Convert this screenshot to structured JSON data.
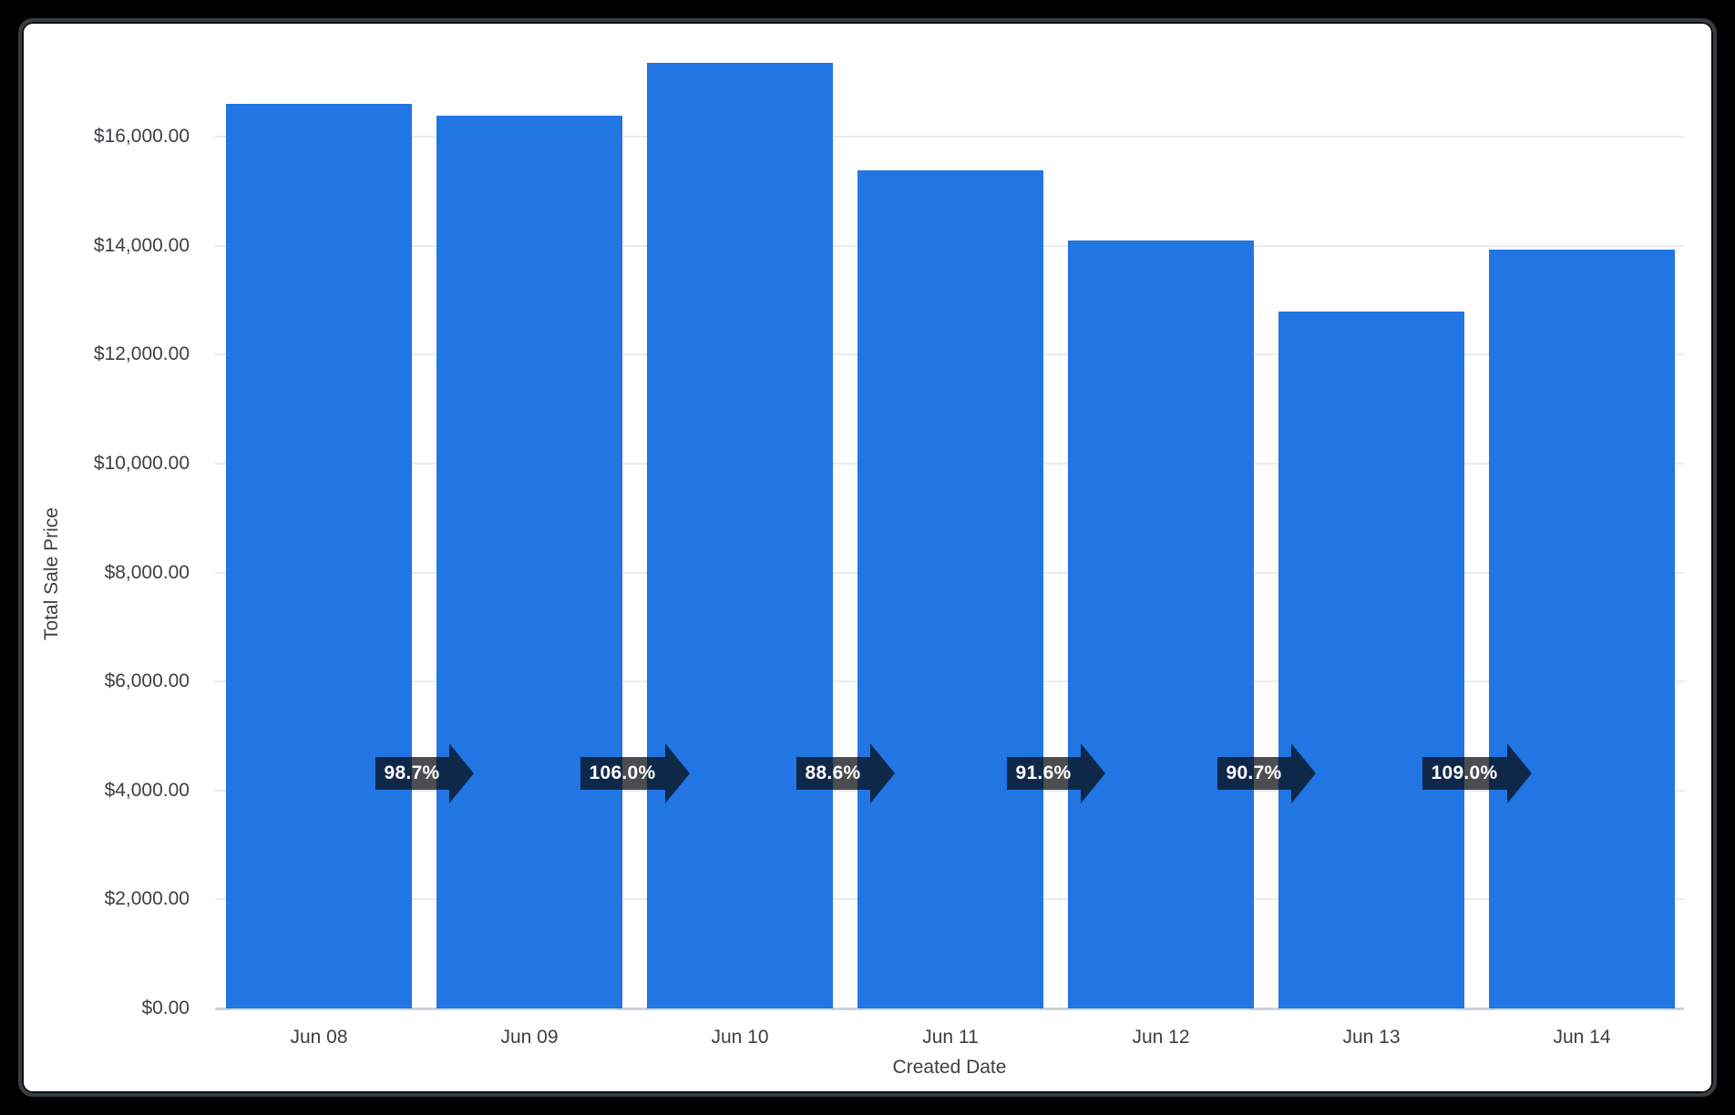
{
  "frame": {
    "page_background": "#000000",
    "card_background": "#ffffff",
    "card_border_color": "#363d41"
  },
  "chart_data": {
    "type": "bar",
    "title": "",
    "xlabel": "Created Date",
    "ylabel": "Total Sale Price",
    "categories": [
      "Jun 08",
      "Jun 09",
      "Jun 10",
      "Jun 11",
      "Jun 12",
      "Jun 13",
      "Jun 14"
    ],
    "values": [
      16600,
      16385,
      17365,
      15385,
      14095,
      12785,
      13935
    ],
    "bar_color": "#2176e4",
    "grid": true,
    "legend": false,
    "ylim": [
      0,
      16000
    ],
    "yticks": [
      {
        "value": 0,
        "label": "$0.00"
      },
      {
        "value": 2000,
        "label": "$2,000.00"
      },
      {
        "value": 4000,
        "label": "$4,000.00"
      },
      {
        "value": 6000,
        "label": "$6,000.00"
      },
      {
        "value": 8000,
        "label": "$8,000.00"
      },
      {
        "value": 10000,
        "label": "$10,000.00"
      },
      {
        "value": 12000,
        "label": "$12,000.00"
      },
      {
        "value": 14000,
        "label": "$14,000.00"
      },
      {
        "value": 16000,
        "label": "$16,000.00"
      }
    ],
    "growth_arrows": [
      {
        "from": "Jun 08",
        "to": "Jun 09",
        "label": "98.7%"
      },
      {
        "from": "Jun 09",
        "to": "Jun 10",
        "label": "106.0%"
      },
      {
        "from": "Jun 10",
        "to": "Jun 11",
        "label": "88.6%"
      },
      {
        "from": "Jun 11",
        "to": "Jun 12",
        "label": "91.6%"
      },
      {
        "from": "Jun 12",
        "to": "Jun 13",
        "label": "90.7%"
      },
      {
        "from": "Jun 13",
        "to": "Jun 14",
        "label": "109.0%"
      }
    ],
    "arrow_fill": "rgba(8,11,16,0.73)",
    "arrow_text_color": "#ffffff",
    "gridline_color": "#e9eaec",
    "axis_text_color": "#3c4043"
  }
}
